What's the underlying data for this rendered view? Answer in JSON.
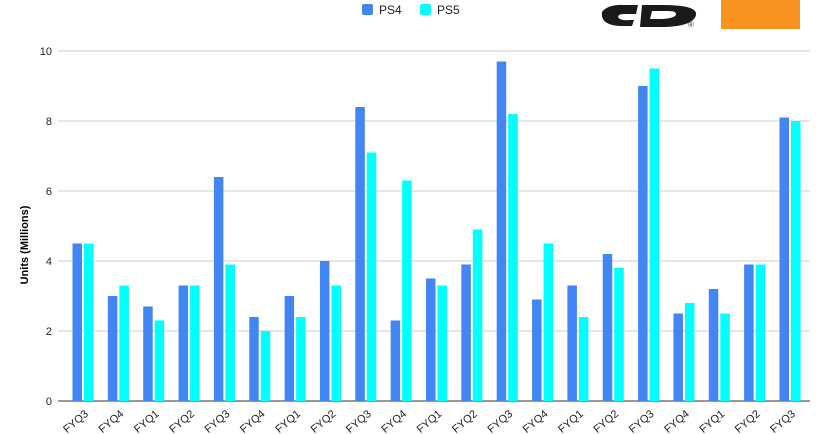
{
  "chart_data": {
    "type": "bar",
    "title": "",
    "xlabel": "",
    "ylabel": "Units (Millions)",
    "ylim": [
      0,
      10
    ],
    "yticks": [
      0,
      2,
      4,
      6,
      8,
      10
    ],
    "grid": true,
    "legend_position": "top",
    "categories": [
      "FYQ3",
      "FYQ4",
      "FYQ1",
      "FYQ2",
      "FYQ3",
      "FYQ4",
      "FYQ1",
      "FYQ2",
      "FYQ3",
      "FYQ4",
      "FYQ1",
      "FYQ2",
      "FYQ3",
      "FYQ4",
      "FYQ1",
      "FYQ2",
      "FYQ3",
      "FYQ4",
      "FYQ1",
      "FYQ2",
      "FYQ3"
    ],
    "series": [
      {
        "name": "PS4",
        "color": "#4285f4",
        "values": [
          4.5,
          3.0,
          2.7,
          3.3,
          6.4,
          2.4,
          3.0,
          4.0,
          8.4,
          2.3,
          3.5,
          3.9,
          9.7,
          2.9,
          3.3,
          4.2,
          9.0,
          2.5,
          3.2,
          3.9,
          8.1
        ]
      },
      {
        "name": "PS5",
        "color": "#00ffff",
        "values": [
          4.5,
          3.3,
          2.3,
          3.3,
          3.9,
          2.0,
          2.4,
          3.3,
          7.1,
          6.3,
          3.3,
          4.9,
          8.2,
          4.5,
          2.4,
          3.8,
          9.5,
          2.8,
          2.5,
          3.9,
          8.0
        ]
      }
    ]
  },
  "logos": {
    "playstation": "PlayStation logo",
    "orange_badge_color": "#f7931e"
  }
}
